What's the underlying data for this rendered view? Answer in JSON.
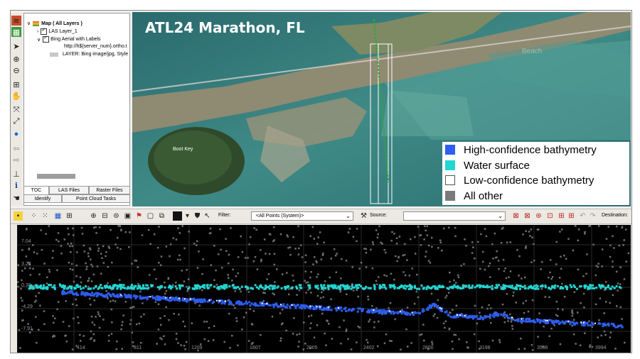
{
  "toc": {
    "root_label": "Map ( All Layers )",
    "layer1_label": "LAS Layer_1",
    "layer2_label": "Bing Aerial with Labels",
    "url_text": "http://h${server_num}.ortho.t",
    "layer_desc": "LAYER: Bing image/jpg, Style"
  },
  "bottom_tabs": [
    "TOC",
    "LAS Files",
    "Raster Files",
    "Identify",
    "Point Cloud Tasks"
  ],
  "map": {
    "title": "ATL24 Marathon, FL",
    "place_label": "Boot Key",
    "faded_label": "Beach",
    "legend": [
      {
        "label": "High-confidence bathymetry",
        "color": "#2e5ef2"
      },
      {
        "label": "Water surface",
        "color": "#22d6d3"
      },
      {
        "label": "Low-confidence bathymetry",
        "color": "#ffffff"
      },
      {
        "label": "All other",
        "color": "#7a7a7a"
      }
    ]
  },
  "toolbar2": {
    "filter_label": "Filter:",
    "filter_value": "<All Points (System)>",
    "source_label": "Source:",
    "source_value": "",
    "destination_label": "Destination:"
  },
  "profile": {
    "y_ticks": [
      "7.04",
      "3.24",
      "0.38",
      "-4.29",
      "-7.91"
    ],
    "x_ticks": [
      "414",
      "811",
      "1209",
      "1607",
      "2005",
      "2402",
      "2800",
      "3198",
      "3596",
      "3994"
    ]
  }
}
